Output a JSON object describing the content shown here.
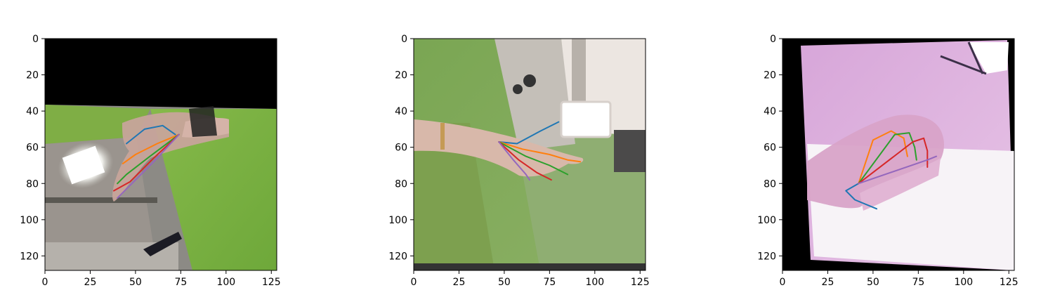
{
  "chart_data": [
    {
      "type": "image-with-keypoints",
      "xlim": [
        0,
        127
      ],
      "ylim": [
        127,
        0
      ],
      "xticks": [
        0,
        25,
        50,
        75,
        100,
        125
      ],
      "yticks": [
        0,
        20,
        40,
        60,
        80,
        100,
        120
      ],
      "background": "green-screen room, hand at lower-left, black band at top",
      "series": [
        {
          "color": "#1f77b4",
          "points": [
            [
              45,
              58
            ],
            [
              55,
              50
            ],
            [
              65,
              48
            ],
            [
              72,
              53
            ]
          ]
        },
        {
          "color": "#ff7f0e",
          "points": [
            [
              43,
              69
            ],
            [
              50,
              64
            ],
            [
              62,
              58
            ],
            [
              74,
              53
            ]
          ]
        },
        {
          "color": "#2ca02c",
          "points": [
            [
              40,
              80
            ],
            [
              45,
              75
            ],
            [
              58,
              65
            ],
            [
              74,
              53
            ]
          ]
        },
        {
          "color": "#d62728",
          "points": [
            [
              38,
              84
            ],
            [
              47,
              79
            ],
            [
              60,
              66
            ],
            [
              74,
              53
            ]
          ]
        },
        {
          "color": "#9467bd",
          "points": [
            [
              40,
              88
            ],
            [
              48,
              80
            ],
            [
              60,
              68
            ],
            [
              74,
              53
            ]
          ]
        }
      ]
    },
    {
      "type": "image-with-keypoints",
      "xlim": [
        0,
        127
      ],
      "ylim": [
        127,
        0
      ],
      "xticks": [
        0,
        25,
        50,
        75,
        100,
        125
      ],
      "yticks": [
        0,
        20,
        40,
        60,
        80,
        100,
        120
      ],
      "background": "green-screen room with light panel, hand pointing right",
      "series": [
        {
          "color": "#1f77b4",
          "points": [
            [
              47,
              57
            ],
            [
              57,
              58
            ],
            [
              70,
              51
            ],
            [
              80,
              46
            ]
          ]
        },
        {
          "color": "#ff7f0e",
          "points": [
            [
              47,
              57
            ],
            [
              60,
              61
            ],
            [
              75,
              64
            ],
            [
              85,
              67
            ],
            [
              92,
              68
            ]
          ]
        },
        {
          "color": "#2ca02c",
          "points": [
            [
              47,
              57
            ],
            [
              62,
              65
            ],
            [
              75,
              70
            ],
            [
              85,
              75
            ]
          ]
        },
        {
          "color": "#d62728",
          "points": [
            [
              47,
              57
            ],
            [
              58,
              67
            ],
            [
              68,
              74
            ],
            [
              76,
              78
            ]
          ]
        },
        {
          "color": "#9467bd",
          "points": [
            [
              47,
              57
            ],
            [
              55,
              67
            ],
            [
              62,
              75
            ],
            [
              64,
              78
            ]
          ]
        }
      ]
    },
    {
      "type": "image-with-keypoints",
      "xlim": [
        0,
        127
      ],
      "ylim": [
        127,
        0
      ],
      "xticks": [
        0,
        25,
        50,
        75,
        100,
        125
      ],
      "yticks": [
        0,
        20,
        40,
        60,
        80,
        100,
        120
      ],
      "background": "lilac-tinted room, clenched hand, black rotation corners",
      "series": [
        {
          "color": "#1f77b4",
          "points": [
            [
              52,
              94
            ],
            [
              40,
              89
            ],
            [
              35,
              84
            ],
            [
              42,
              80
            ]
          ]
        },
        {
          "color": "#ff7f0e",
          "points": [
            [
              42,
              80
            ],
            [
              50,
              56
            ],
            [
              60,
              51
            ],
            [
              67,
              55
            ],
            [
              69,
              65
            ]
          ]
        },
        {
          "color": "#2ca02c",
          "points": [
            [
              42,
              80
            ],
            [
              62,
              53
            ],
            [
              70,
              52
            ],
            [
              73,
              60
            ],
            [
              74,
              67
            ]
          ]
        },
        {
          "color": "#d62728",
          "points": [
            [
              42,
              80
            ],
            [
              72,
              57
            ],
            [
              78,
              55
            ],
            [
              80,
              62
            ],
            [
              80,
              71
            ]
          ]
        },
        {
          "color": "#9467bd",
          "points": [
            [
              42,
              80
            ],
            [
              80,
              67
            ],
            [
              85,
              65
            ]
          ]
        }
      ]
    }
  ]
}
